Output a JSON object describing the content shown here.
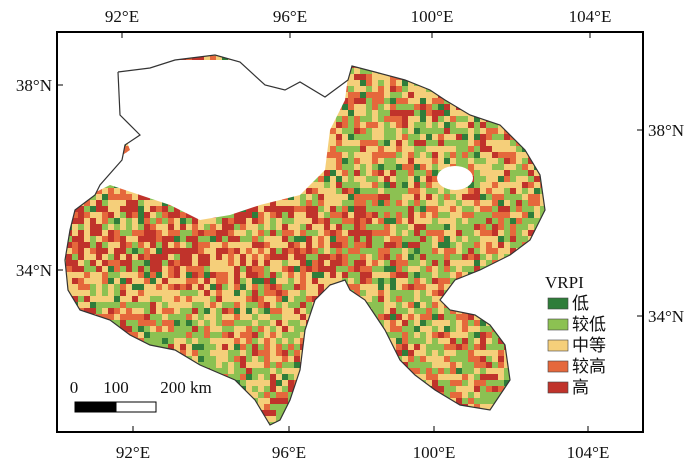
{
  "map": {
    "top_ticks": [
      "92°E",
      "96°E",
      "100°E",
      "104°E"
    ],
    "bottom_ticks": [
      "92°E",
      "96°E",
      "100°E",
      "104°E"
    ],
    "left_ticks": [
      "38°N",
      "34°N"
    ],
    "right_ticks": [
      "38°N",
      "34°N"
    ],
    "legend": {
      "title": "VRPI",
      "items": [
        {
          "label": "低",
          "color": "#2f7d3a"
        },
        {
          "label": "较低",
          "color": "#8cc152"
        },
        {
          "label": "中等",
          "color": "#f5cf7a"
        },
        {
          "label": "较高",
          "color": "#e5683c"
        },
        {
          "label": "高",
          "color": "#c0332b"
        }
      ]
    },
    "scale_bar": {
      "labels": [
        "0",
        "100",
        "200 km"
      ]
    }
  }
}
